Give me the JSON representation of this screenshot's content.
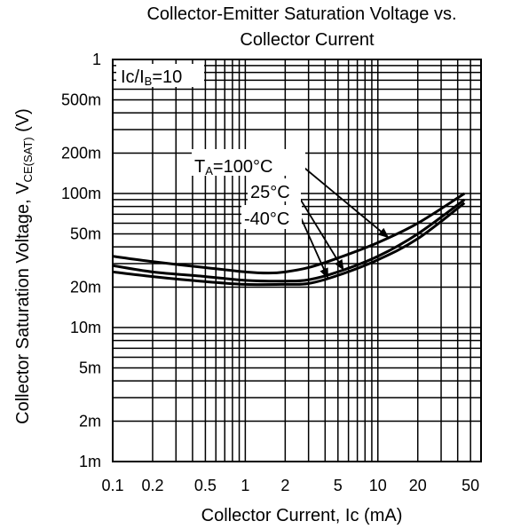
{
  "chart_data": {
    "type": "line",
    "title_line1": "Collector-Emitter Saturation Voltage vs.",
    "title_line2": "Collector Current",
    "xlabel": "Collector Current, Ic (mA)",
    "ylabel_main": "Collector Saturation Voltage, V",
    "ylabel_sub": "CE(SAT)",
    "ylabel_unit": " (V)",
    "x_scale": "log",
    "y_scale": "log",
    "xlim": [
      0.1,
      60
    ],
    "ylim": [
      0.001,
      1
    ],
    "grid": true,
    "x_ticks": [
      {
        "v": 0.1,
        "label": "0.1"
      },
      {
        "v": 0.2,
        "label": "0.2"
      },
      {
        "v": 0.5,
        "label": "0.5"
      },
      {
        "v": 1,
        "label": "1"
      },
      {
        "v": 2,
        "label": "2"
      },
      {
        "v": 5,
        "label": "5"
      },
      {
        "v": 10,
        "label": "10"
      },
      {
        "v": 20,
        "label": "20"
      },
      {
        "v": 50,
        "label": "50"
      }
    ],
    "y_ticks": [
      {
        "v": 1,
        "label": "1"
      },
      {
        "v": 0.5,
        "label": "500m"
      },
      {
        "v": 0.2,
        "label": "200m"
      },
      {
        "v": 0.1,
        "label": "100m"
      },
      {
        "v": 0.05,
        "label": "50m"
      },
      {
        "v": 0.02,
        "label": "20m"
      },
      {
        "v": 0.01,
        "label": "10m"
      },
      {
        "v": 0.005,
        "label": "5m"
      },
      {
        "v": 0.002,
        "label": "2m"
      },
      {
        "v": 0.001,
        "label": "1m"
      }
    ],
    "condition_label_main": "Ic/I",
    "condition_label_sub": "B",
    "condition_label_tail": "=10",
    "series": [
      {
        "label_main": "T",
        "label_sub": "A",
        "label_tail": "=100°C",
        "x": [
          0.1,
          0.2,
          0.5,
          1,
          1.5,
          2,
          3,
          5,
          10,
          20,
          45
        ],
        "y": [
          0.034,
          0.031,
          0.028,
          0.026,
          0.0255,
          0.026,
          0.028,
          0.033,
          0.043,
          0.06,
          0.1
        ]
      },
      {
        "label_main": "25°C",
        "x": [
          0.1,
          0.2,
          0.5,
          1,
          2,
          3,
          5,
          10,
          20,
          45
        ],
        "y": [
          0.029,
          0.026,
          0.024,
          0.0225,
          0.0222,
          0.0227,
          0.026,
          0.034,
          0.05,
          0.09
        ]
      },
      {
        "label_main": "-40°C",
        "x": [
          0.1,
          0.2,
          0.5,
          1,
          2,
          3,
          5,
          10,
          20,
          45
        ],
        "y": [
          0.026,
          0.024,
          0.022,
          0.021,
          0.021,
          0.0213,
          0.0245,
          0.032,
          0.046,
          0.085
        ]
      }
    ]
  }
}
